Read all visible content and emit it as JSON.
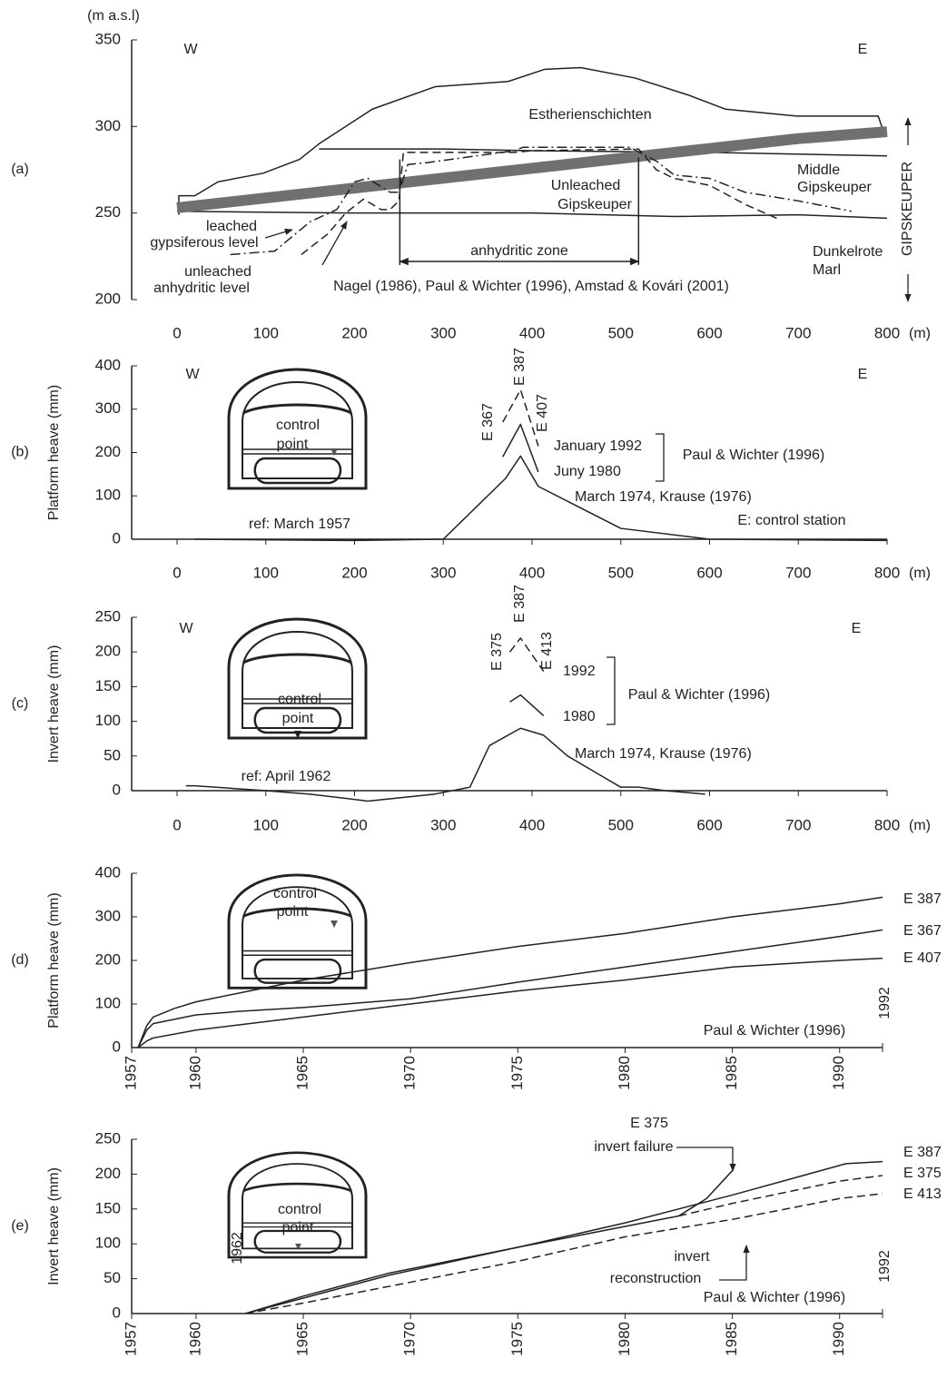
{
  "chart_data": [
    {
      "type": "line",
      "panel_label": "(a)",
      "y_label": "(m a.s.l)",
      "x_unit": "(m)",
      "xlim": [
        0,
        800
      ],
      "xticks": [
        0,
        100,
        200,
        300,
        400,
        500,
        600,
        700,
        800
      ],
      "ylim": [
        200,
        350
      ],
      "yticks": [
        200,
        250,
        300,
        350
      ],
      "series": [
        {
          "style": "solid",
          "color": "#222",
          "x": [
            2,
            2,
            20,
            46,
            97,
            138,
            160,
            220,
            291,
            373,
            414,
            455,
            516,
            577,
            618,
            698,
            790,
            796
          ],
          "values": [
            249,
            260,
            260,
            268,
            273,
            281,
            290,
            310,
            323,
            326,
            333,
            334,
            328,
            318,
            310,
            306,
            306,
            297
          ]
        },
        {
          "style": "solid",
          "color": "#222",
          "x": [
            160,
            300,
            400,
            600,
            800
          ],
          "values": [
            287,
            287,
            286,
            285,
            283
          ]
        },
        {
          "style": "solid",
          "color": "#222",
          "x": [
            0,
            200,
            400,
            560,
            700,
            800
          ],
          "values": [
            251,
            250,
            250,
            248,
            249,
            247
          ]
        },
        {
          "style": "thick",
          "color": "#707070",
          "x": [
            0,
            700,
            800
          ],
          "values": [
            253,
            293,
            297
          ]
        },
        {
          "style": "dashdot",
          "color": "#222",
          "x": [
            60,
            110,
            150,
            180,
            200,
            215,
            240,
            250,
            260,
            280,
            380,
            390,
            510,
            540,
            560,
            600,
            640,
            700,
            760
          ],
          "values": [
            226,
            228,
            245,
            252,
            268,
            270,
            262,
            262,
            278,
            279,
            286,
            288,
            288,
            280,
            272,
            270,
            262,
            257,
            251
          ]
        },
        {
          "style": "dashed",
          "color": "#222",
          "x": [
            140,
            170,
            190,
            210,
            230,
            240,
            250,
            255,
            380,
            400,
            520,
            540,
            560,
            600,
            640,
            680
          ],
          "values": [
            226,
            238,
            250,
            258,
            252,
            252,
            257,
            285,
            285,
            286,
            287,
            275,
            270,
            266,
            255,
            246
          ]
        },
        {
          "style": "solid",
          "color": "#222",
          "x": [
            251,
            251
          ],
          "values": [
            281,
            220
          ]
        },
        {
          "style": "solid",
          "color": "#222",
          "x": [
            520,
            520
          ],
          "values": [
            282,
            220
          ]
        },
        {
          "style": "arrow",
          "color": "#222",
          "x": [
            251,
            520
          ],
          "values": [
            222,
            222
          ]
        }
      ],
      "annotations": [
        "W",
        "E",
        "Estherienschichten",
        "Middle",
        "Gipskeuper",
        "Unleached",
        "Gipskeuper",
        "Dunkelrote",
        "Marl",
        "anhydritic zone",
        "leached",
        "gypsiferous level",
        "unleached",
        "anhydritic level",
        "Nagel (1986), Paul & Wichter (1996), Amstad & Kovári (2001)",
        "GIPSKEUPER"
      ]
    },
    {
      "type": "line",
      "panel_label": "(b)",
      "y_label": "Platform heave (mm)",
      "x_unit": "(m)",
      "xlim": [
        0,
        800
      ],
      "xticks": [
        0,
        100,
        200,
        300,
        400,
        500,
        600,
        700,
        800
      ],
      "ylim": [
        0,
        400
      ],
      "yticks": [
        0,
        100,
        200,
        300,
        400
      ],
      "series": [
        {
          "name": "January 1992",
          "style": "dashed",
          "color": "#222",
          "x": [
            367,
            387,
            407
          ],
          "values": [
            270,
            345,
            215
          ]
        },
        {
          "name": "Juny 1980",
          "style": "solid",
          "color": "#222",
          "x": [
            367,
            387,
            407
          ],
          "values": [
            190,
            265,
            155
          ]
        },
        {
          "name": "March 1974, Krause (1976)",
          "style": "solid",
          "color": "#222",
          "x": [
            20,
            200,
            300,
            370,
            387,
            407,
            500,
            600,
            800
          ],
          "values": [
            0,
            -3,
            0,
            140,
            192,
            122,
            25,
            0,
            -3
          ]
        }
      ],
      "annotations": [
        "W",
        "E",
        "E 367",
        "E 387",
        "E 407",
        "Paul & Wichter (1996)",
        "ref: March 1957",
        "E: control station",
        "control",
        "point"
      ]
    },
    {
      "type": "line",
      "panel_label": "(c)",
      "y_label": "Invert heave (mm)",
      "x_unit": "(m)",
      "xlim": [
        0,
        800
      ],
      "xticks": [
        0,
        100,
        200,
        300,
        400,
        500,
        600,
        700,
        800
      ],
      "ylim": [
        0,
        250
      ],
      "yticks": [
        0,
        50,
        100,
        150,
        200,
        250
      ],
      "series": [
        {
          "name": "1992",
          "style": "dashed",
          "color": "#222",
          "x": [
            375,
            387,
            413
          ],
          "values": [
            200,
            220,
            172
          ]
        },
        {
          "name": "1980",
          "style": "solid",
          "color": "#222",
          "x": [
            375,
            387,
            413
          ],
          "values": [
            128,
            138,
            108
          ]
        },
        {
          "name": "March 1974, Krause (1976)",
          "style": "solid",
          "color": "#222",
          "x": [
            10,
            20,
            100,
            150,
            215,
            290,
            330,
            352,
            387,
            413,
            440,
            480,
            500,
            520,
            550,
            595
          ],
          "values": [
            7,
            7,
            0,
            -5,
            -15,
            -5,
            5,
            65,
            90,
            80,
            50,
            20,
            5,
            5,
            0,
            -5
          ]
        }
      ],
      "annotations": [
        "W",
        "E",
        "E 375",
        "E 387",
        "E 413",
        "Paul & Wichter (1996)",
        "ref: April 1962",
        "control",
        "point"
      ]
    },
    {
      "type": "line",
      "panel_label": "(d)",
      "y_label": "Platform heave (mm)",
      "xlim": [
        1957,
        1992
      ],
      "xticks": [
        1957,
        1960,
        1965,
        1970,
        1975,
        1980,
        1985,
        1990
      ],
      "ylim": [
        0,
        400
      ],
      "yticks": [
        0,
        100,
        200,
        300,
        400
      ],
      "series": [
        {
          "name": "E 387",
          "style": "solid",
          "color": "#222",
          "x": [
            1957.3,
            1957.7,
            1958,
            1959,
            1960,
            1962,
            1965,
            1970,
            1975,
            1980,
            1985,
            1990,
            1992
          ],
          "values": [
            0,
            50,
            70,
            90,
            105,
            125,
            155,
            195,
            232,
            262,
            300,
            330,
            345
          ]
        },
        {
          "name": "E 367",
          "style": "solid",
          "color": "#222",
          "x": [
            1957.3,
            1957.7,
            1958,
            1960,
            1962,
            1965,
            1970,
            1975,
            1980,
            1985,
            1990,
            1992
          ],
          "values": [
            0,
            40,
            55,
            75,
            83,
            92,
            112,
            150,
            185,
            220,
            255,
            270
          ]
        },
        {
          "name": "E 407",
          "style": "solid",
          "color": "#222",
          "x": [
            1957.3,
            1957.7,
            1958,
            1960,
            1962,
            1965,
            1970,
            1975,
            1980,
            1985,
            1990,
            1992
          ],
          "values": [
            0,
            15,
            22,
            40,
            52,
            70,
            100,
            130,
            155,
            185,
            200,
            205
          ]
        }
      ],
      "annotations": [
        "control",
        "point",
        "Paul & Wichter (1996)",
        "1992"
      ]
    },
    {
      "type": "line",
      "panel_label": "(e)",
      "y_label": "Invert heave (mm)",
      "xlim": [
        1957,
        1992
      ],
      "xticks": [
        1957,
        1960,
        1965,
        1970,
        1975,
        1980,
        1985,
        1990
      ],
      "ylim": [
        0,
        250
      ],
      "yticks": [
        0,
        50,
        100,
        150,
        200,
        250
      ],
      "series": [
        {
          "name": "E 387",
          "style": "solid",
          "color": "#222",
          "x": [
            1962.3,
            1965,
            1969,
            1975,
            1980,
            1985,
            1990.3,
            1992
          ],
          "values": [
            0,
            25,
            58,
            95,
            130,
            170,
            215,
            218
          ]
        },
        {
          "name": "E 375",
          "style": "dashed",
          "color": "#222",
          "x": [
            1982.5,
            1985,
            1990,
            1992
          ],
          "values": [
            140,
            158,
            190,
            198
          ]
        },
        {
          "name": "E 413",
          "style": "dashed",
          "color": "#222",
          "x": [
            1962.3,
            1965,
            1970,
            1975,
            1980,
            1985,
            1990,
            1992
          ],
          "values": [
            0,
            15,
            45,
            75,
            110,
            135,
            165,
            172
          ]
        },
        {
          "style": "solid",
          "color": "#222",
          "x": [
            1962.3,
            1969,
            1975,
            1982.5,
            1983.8,
            1985
          ],
          "values": [
            0,
            55,
            95,
            140,
            165,
            205
          ]
        }
      ],
      "annotations": [
        "control",
        "point",
        "E 375",
        "invert failure",
        "invert",
        "reconstruction",
        "1962",
        "1992",
        "Paul & Wichter (1996)"
      ]
    }
  ]
}
